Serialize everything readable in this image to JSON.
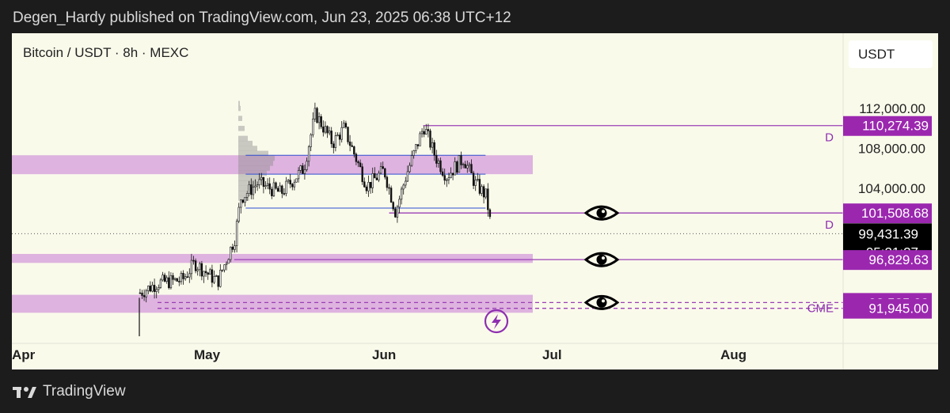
{
  "header": {
    "text": "Degen_Hardy published on TradingView.com, Jun 23, 2025 06:38 UTC+12"
  },
  "footer": {
    "brand": "TradingView",
    "logo_icon": "tradingview-logo-icon"
  },
  "chart_data": {
    "type": "candlestick",
    "title": "Bitcoin / USDT · 8h · MEXC",
    "currency_button": "USDT",
    "x_ticks": [
      "Apr",
      "May",
      "Jun",
      "Jul",
      "Aug"
    ],
    "y_ticks": [
      112000,
      108000,
      104000
    ],
    "y_tick_labels": [
      "112,000.00",
      "108,000.00",
      "104,000.00"
    ],
    "ylim": [
      90000,
      117000
    ],
    "price_labels": [
      {
        "value": 110274.39,
        "label": "110,274.39",
        "tag": "D",
        "style": "purple"
      },
      {
        "value": 101508.68,
        "label": "101,508.68",
        "tag": "D",
        "style": "purple"
      },
      {
        "value": 99431.39,
        "label": "99,431.39",
        "sub": "05:21:27",
        "style": "current"
      },
      {
        "value": 96829.63,
        "label": "96,829.63",
        "style": "purple"
      },
      {
        "value": 92525.0,
        "label": "92,525.00",
        "style": "purple"
      },
      {
        "value": 91945.0,
        "label": "91,945.00",
        "tag": "CME",
        "style": "purple"
      }
    ],
    "zones": [
      {
        "low": 105400,
        "high": 107300,
        "from": "Apr",
        "to": "Jul"
      },
      {
        "low": 96500,
        "high": 97400,
        "from": "Apr",
        "to": "Jul"
      },
      {
        "low": 91500,
        "high": 93300,
        "from": "Apr",
        "to": "Jul"
      }
    ],
    "levels": [
      {
        "value": 110274.39,
        "from": "Jun 10"
      },
      {
        "value": 101508.68,
        "from": "Jun 04"
      },
      {
        "value": 96829.63,
        "from": "May 08"
      },
      {
        "value": 107300,
        "from": "May 10",
        "to": "Jun 21",
        "color": "blue"
      },
      {
        "value": 105400,
        "from": "May 10",
        "to": "Jun 21",
        "color": "blue"
      },
      {
        "value": 102000,
        "from": "May 10",
        "to": "Jun 21",
        "color": "blue"
      },
      {
        "value": 92525,
        "from": "Apr 25",
        "dashed": true
      },
      {
        "value": 91945,
        "from": "Apr 25",
        "dashed": true
      }
    ],
    "watch_markers": [
      101508.68,
      96829.63,
      92525
    ],
    "series_close": [
      {
        "date": "Apr 22",
        "close": 93500
      },
      {
        "date": "Apr 25",
        "close": 94500
      },
      {
        "date": "Apr 29",
        "close": 94800
      },
      {
        "date": "May 01",
        "close": 96500
      },
      {
        "date": "May 05",
        "close": 94600
      },
      {
        "date": "May 08",
        "close": 99000
      },
      {
        "date": "May 09",
        "close": 103000
      },
      {
        "date": "May 12",
        "close": 104500
      },
      {
        "date": "May 16",
        "close": 103500
      },
      {
        "date": "May 20",
        "close": 106000
      },
      {
        "date": "May 22",
        "close": 111500
      },
      {
        "date": "May 25",
        "close": 108500
      },
      {
        "date": "May 27",
        "close": 110000
      },
      {
        "date": "May 31",
        "close": 104200
      },
      {
        "date": "Jun 03",
        "close": 105800
      },
      {
        "date": "Jun 05",
        "close": 101600
      },
      {
        "date": "Jun 07",
        "close": 105500
      },
      {
        "date": "Jun 10",
        "close": 110200
      },
      {
        "date": "Jun 12",
        "close": 107200
      },
      {
        "date": "Jun 14",
        "close": 105200
      },
      {
        "date": "Jun 17",
        "close": 107000
      },
      {
        "date": "Jun 19",
        "close": 104500
      },
      {
        "date": "Jun 21",
        "close": 103200
      },
      {
        "date": "Jun 22",
        "close": 99431.39
      }
    ],
    "colors": {
      "zone": "#d8a6dd",
      "level": "#9b3fb5",
      "label_bg": "#9b27af",
      "blue_line": "#2e4fd0",
      "current_bg": "#000000"
    }
  }
}
